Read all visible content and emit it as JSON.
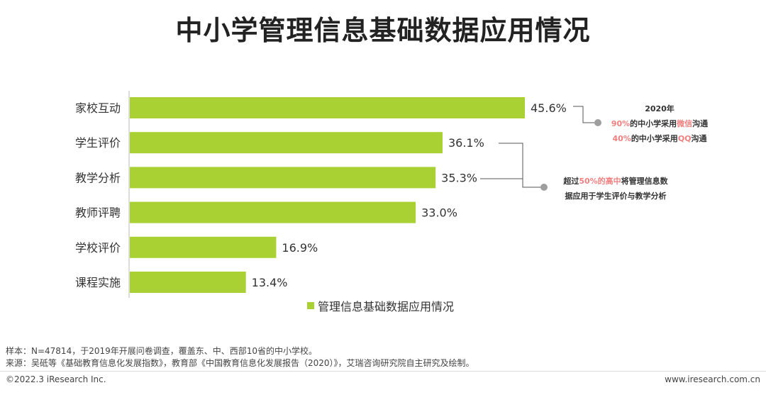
{
  "title": "中小学管理信息基础数据应用情况",
  "chart_data": {
    "type": "bar",
    "orientation": "horizontal",
    "categories": [
      "家校互动",
      "学生评价",
      "教学分析",
      "教师评聘",
      "学校评价",
      "课程实施"
    ],
    "values": [
      45.6,
      36.1,
      35.3,
      33.0,
      16.9,
      13.4
    ],
    "value_labels": [
      "45.6%",
      "36.1%",
      "35.3%",
      "33.0%",
      "16.9%",
      "13.4%"
    ],
    "series_name": "管理信息基础数据应用情况",
    "xlim": [
      0,
      60
    ],
    "bar_color": "#a9d134",
    "legend_position": "bottom"
  },
  "annotation1": {
    "year": "2020年",
    "line1_pct": "90%",
    "line1_mid": "的中小学采用",
    "line1_hl": "微信",
    "line1_end": "沟通",
    "line2_pct": "40%",
    "line2_mid": "的中小学采用",
    "line2_hl": "QQ",
    "line2_end": "沟通"
  },
  "annotation2": {
    "prefix": "超过",
    "highlight": "50%的高中",
    "suffix": "将管理信息数",
    "line2": "据应用于学生评价与教学分析"
  },
  "colors": {
    "accent": "#f08080",
    "bar": "#a9d134",
    "connector": "#555555",
    "dot": "#9e9e9e"
  },
  "footer": {
    "sample": "样本：N=47814，于2019年开展问卷调查，覆盖东、中、西部10省的中小学校。",
    "source": "来源：吴砥等《基础教育信息化发展指数》，教育部《中国教育信息化发展报告（2020）》，艾瑞咨询研究院自主研究及绘制。",
    "copyright": "©2022.3 iResearch Inc.",
    "website": "www.iresearch.com.cn"
  }
}
